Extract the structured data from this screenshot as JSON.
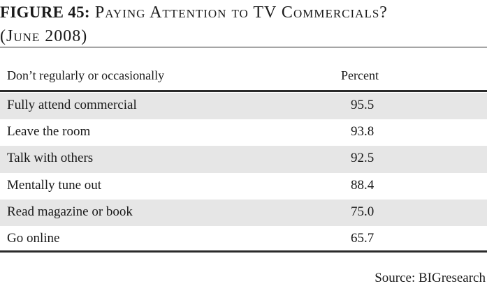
{
  "figure": {
    "number_label": "FIGURE 45:",
    "title": "Paying Attention to TV Commercials?",
    "subtitle": "(June 2008)"
  },
  "chart_data": {
    "type": "table",
    "title": "Paying Attention to TV Commercials? (June 2008)",
    "columns": [
      "Don’t regularly or occasionally",
      "Percent"
    ],
    "rows": [
      {
        "label": "Fully attend commercial",
        "value": "95.5"
      },
      {
        "label": "Leave the room",
        "value": "93.8"
      },
      {
        "label": "Talk with others",
        "value": "92.5"
      },
      {
        "label": "Mentally tune out",
        "value": "88.4"
      },
      {
        "label": "Read magazine or book",
        "value": "75.0"
      },
      {
        "label": "Go online",
        "value": "65.7"
      }
    ]
  },
  "source": "Source: BIGresearch"
}
